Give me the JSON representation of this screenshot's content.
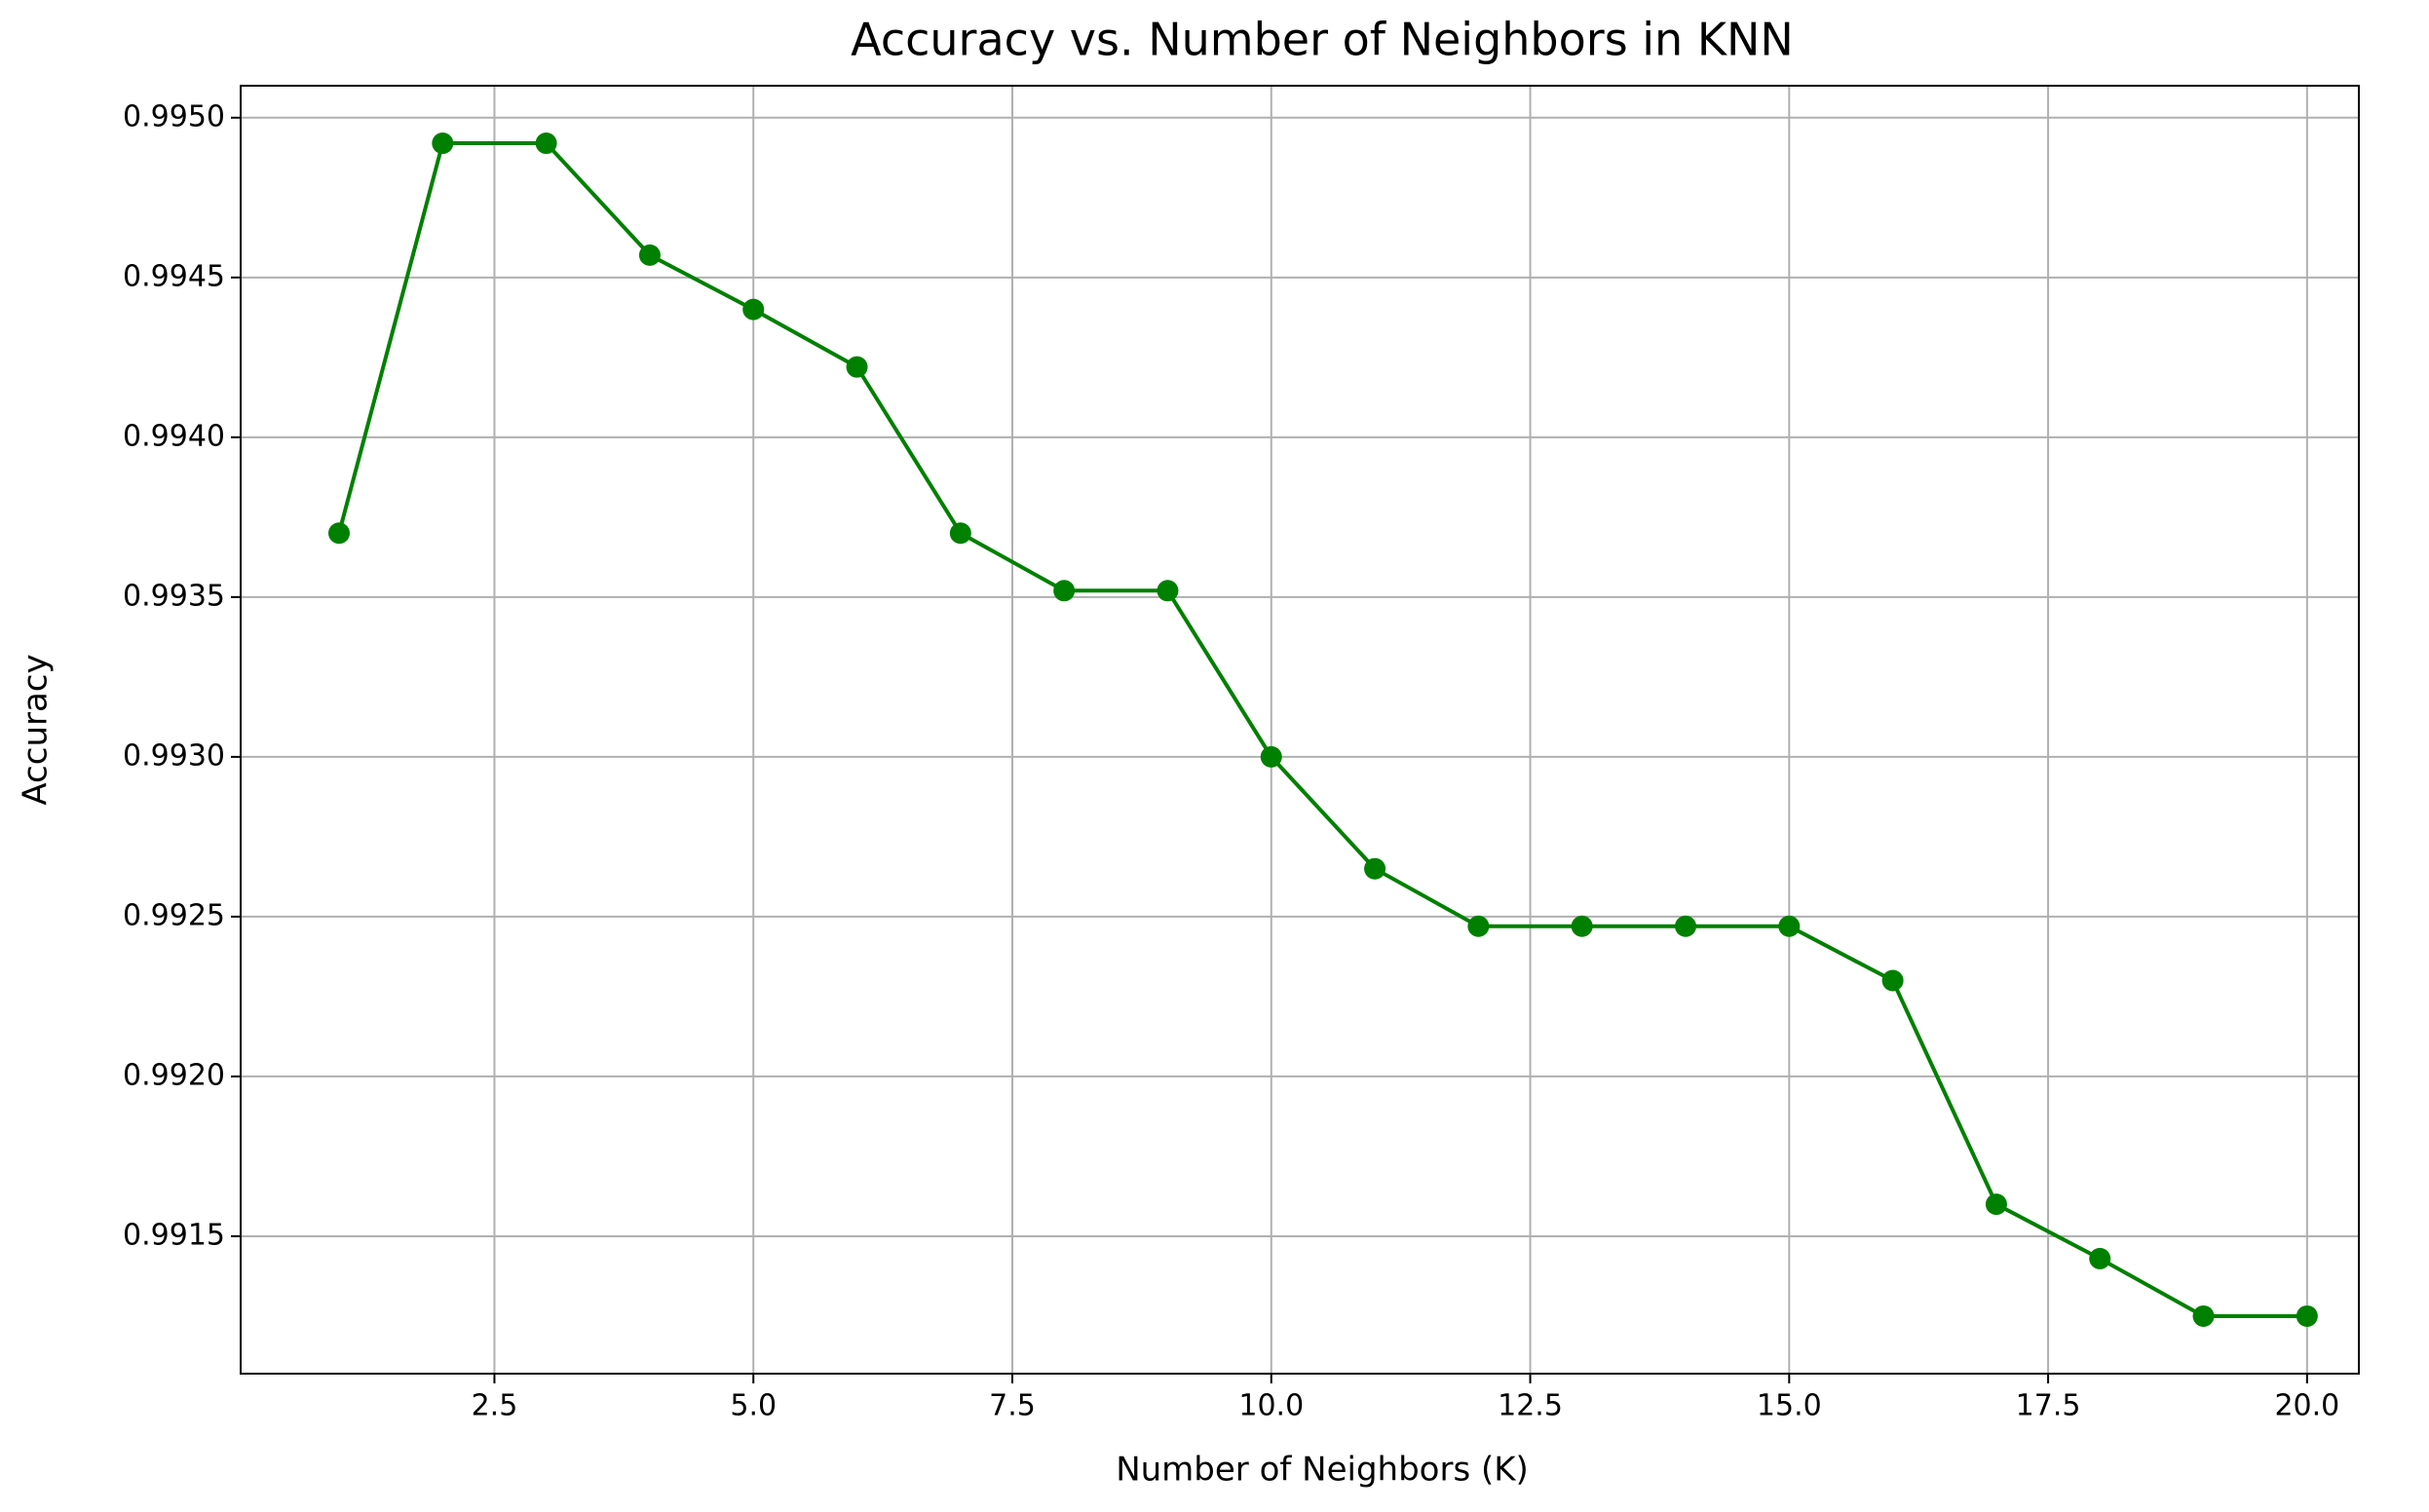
{
  "chart_data": {
    "type": "line",
    "title": "Accuracy vs. Number of Neighbors in KNN",
    "x_label": "Number of Neighbors (K)",
    "y_label": "Accuracy",
    "series": [
      {
        "name": "Accuracy",
        "color": "#008000",
        "x": [
          1,
          2,
          3,
          4,
          5,
          6,
          7,
          8,
          9,
          10,
          11,
          12,
          13,
          14,
          15,
          16,
          17,
          18,
          19,
          20
        ],
        "values": [
          0.9937,
          0.99492,
          0.99492,
          0.99457,
          0.9944,
          0.99422,
          0.9937,
          0.99352,
          0.99352,
          0.993,
          0.99265,
          0.99247,
          0.99247,
          0.99247,
          0.99247,
          0.9923,
          0.9916,
          0.99143,
          0.99125,
          0.99125
        ]
      }
    ],
    "xlim": [
      0.05,
      20.5
    ],
    "ylim": [
      0.99107,
      0.9951
    ],
    "xticks": [
      2.5,
      {
        "value": 5,
        "label": "5.0"
      },
      7.5,
      {
        "value": 10,
        "label": "10.0"
      },
      12.5,
      {
        "value": 15,
        "label": "15.0"
      },
      17.5,
      {
        "value": 20,
        "label": "20.0"
      }
    ],
    "yticks": [
      0.9915,
      {
        "value": 0.992,
        "label": "0.9920"
      },
      0.9925,
      {
        "value": 0.993,
        "label": "0.9930"
      },
      0.9935,
      {
        "value": 0.994,
        "label": "0.9940"
      },
      0.9945,
      {
        "value": 0.995,
        "label": "0.9950"
      }
    ],
    "grid": true
  }
}
